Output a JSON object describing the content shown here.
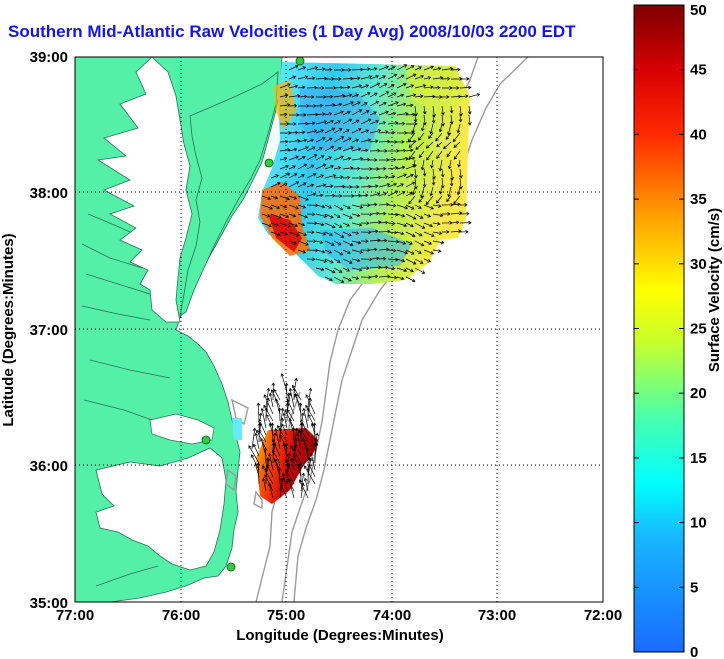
{
  "title": "Southern Mid-Atlantic Raw Velocities (1 Day Avg) 2008/10/03 2200 EDT",
  "map": {
    "x_ticks": [
      "77:00",
      "76:00",
      "75:00",
      "74:00",
      "73:00",
      "72:00"
    ],
    "y_ticks": [
      "39:00",
      "38:00",
      "37:00",
      "36:00",
      "35:00"
    ],
    "x_label": "Longitude (Degrees:Minutes)",
    "y_label": "Latitude (Degrees:Minutes)",
    "grid": "dotted",
    "land_color": "#55f0a8",
    "contour_color": "#9a9a9a"
  },
  "colorbar": {
    "label": "Surface Velocity (cm/s)",
    "min": 0,
    "max": 50,
    "ticks": [
      "0",
      "5",
      "10",
      "15",
      "20",
      "25",
      "30",
      "35",
      "40",
      "45",
      "50"
    ]
  },
  "stations": {
    "color": "#2ecc40"
  }
}
